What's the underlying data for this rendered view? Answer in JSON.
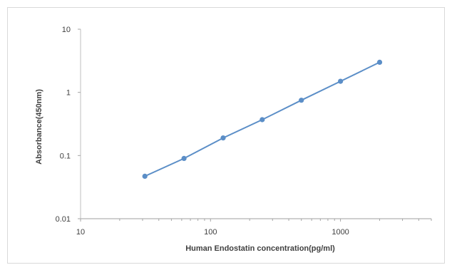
{
  "chart_data": {
    "type": "line",
    "title": "",
    "xlabel": "Human Endostatin  concentration(pg/ml)",
    "ylabel": "Absorbance(450nm)",
    "x_scale": "log",
    "y_scale": "log",
    "xlim": [
      10,
      5000
    ],
    "ylim": [
      0.01,
      10
    ],
    "x_ticks": [
      {
        "value": 10,
        "label": "10"
      },
      {
        "value": 100,
        "label": "100"
      },
      {
        "value": 1000,
        "label": "1000"
      }
    ],
    "y_ticks": [
      {
        "value": 10,
        "label": "10"
      },
      {
        "value": 1,
        "label": "1"
      },
      {
        "value": 0.1,
        "label": "0.1"
      },
      {
        "value": 0.01,
        "label": "0.01"
      }
    ],
    "grid": false,
    "legend": "none",
    "series": [
      {
        "color": "#5b8ec7",
        "x": [
          31.25,
          62.5,
          125,
          250,
          500,
          1000,
          2000
        ],
        "y": [
          0.047,
          0.09,
          0.19,
          0.37,
          0.75,
          1.5,
          3.0
        ]
      }
    ]
  }
}
